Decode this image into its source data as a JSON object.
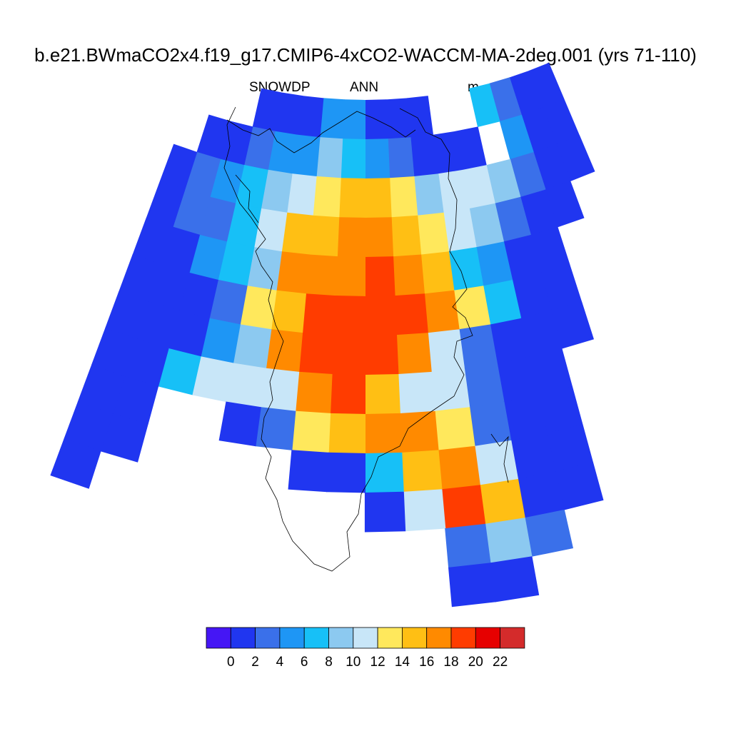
{
  "chart_data": {
    "type": "heatmap",
    "title": "b.e21.BWmaCO2x4.f19_g17.CMIP6-4xCO2-WACCM-MA-2deg.001 (yrs 71-110)",
    "left_string": "SNOWDP",
    "center_string": "ANN",
    "right_string": "m",
    "colorbar": {
      "colors": [
        "#4516F5",
        "#2036F0",
        "#3A70EA",
        "#1E96F5",
        "#17C0F7",
        "#8CC9F0",
        "#C8E6F8",
        "#FFE85C",
        "#FFBF14",
        "#FF8A00",
        "#FF3C00",
        "#E60000",
        "#D42B2B"
      ],
      "tick_labels": [
        "0",
        "2",
        "4",
        "6",
        "8",
        "10",
        "12",
        "14",
        "16",
        "18",
        "20",
        "22"
      ]
    },
    "grid_levels": [
      [
        1,
        1,
        2,
        4,
        -1,
        -1,
        1,
        1,
        1,
        3,
        3,
        1,
        1,
        1,
        -1,
        -1,
        -1,
        -1
      ],
      [
        1,
        1,
        3,
        -1,
        1,
        1,
        1,
        2,
        3,
        4,
        5,
        3,
        3,
        2,
        1,
        1,
        -1,
        -1
      ],
      [
        1,
        1,
        2,
        5,
        6,
        6,
        5,
        7,
        8,
        8,
        7,
        6,
        5,
        4,
        3,
        2,
        1,
        -1
      ],
      [
        -1,
        1,
        1,
        2,
        5,
        6,
        7,
        8,
        9,
        9,
        8,
        8,
        6,
        4,
        2,
        2,
        1,
        -1
      ],
      [
        -1,
        -1,
        1,
        1,
        3,
        4,
        8,
        9,
        10,
        9,
        9,
        9,
        5,
        4,
        3,
        1,
        1,
        -1
      ],
      [
        -1,
        -1,
        1,
        1,
        4,
        7,
        9,
        10,
        10,
        10,
        10,
        8,
        7,
        2,
        1,
        1,
        1,
        -1
      ],
      [
        -1,
        -1,
        1,
        1,
        1,
        2,
        6,
        9,
        10,
        10,
        10,
        9,
        5,
        3,
        1,
        1,
        1,
        -1
      ],
      [
        -1,
        -1,
        -1,
        1,
        1,
        2,
        6,
        6,
        8,
        10,
        9,
        6,
        6,
        6,
        4,
        1,
        1,
        -1
      ],
      [
        -1,
        -1,
        -1,
        1,
        1,
        2,
        7,
        9,
        9,
        8,
        7,
        2,
        1,
        -1,
        -1,
        1,
        1,
        -1
      ],
      [
        -1,
        -1,
        -1,
        1,
        1,
        6,
        9,
        8,
        4,
        1,
        1,
        -1,
        -1,
        -1,
        -1,
        1,
        1,
        -1
      ],
      [
        -1,
        -1,
        -1,
        1,
        1,
        8,
        10,
        6,
        1,
        -1,
        -1,
        -1,
        -1,
        -1,
        -1,
        -1,
        1,
        -1
      ],
      [
        -1,
        -1,
        -1,
        -1,
        2,
        5,
        2,
        -1,
        -1,
        -1,
        -1,
        -1,
        -1,
        -1,
        -1,
        -1,
        -1,
        -1
      ],
      [
        -1,
        -1,
        -1,
        -1,
        -1,
        1,
        1,
        -1,
        -1,
        -1,
        -1,
        -1,
        -1,
        -1,
        -1,
        -1,
        -1,
        -1
      ]
    ]
  }
}
